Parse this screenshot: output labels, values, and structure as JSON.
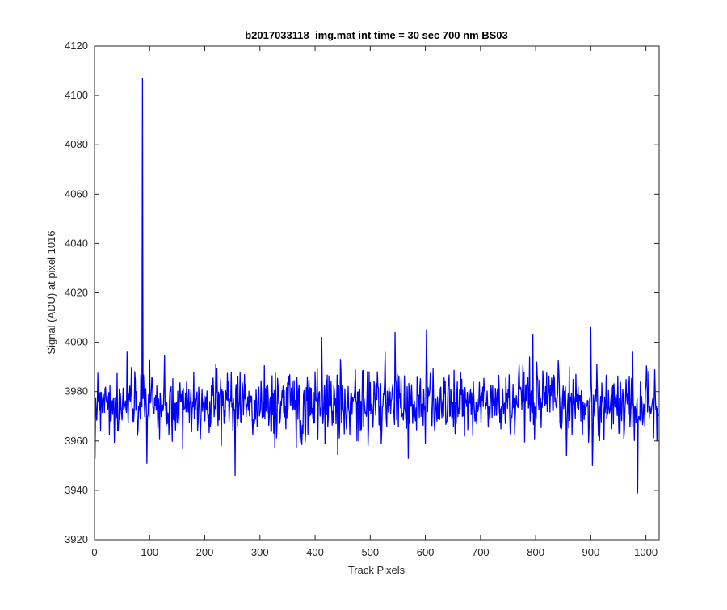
{
  "chart_data": {
    "type": "line",
    "title": "b2017033118_img.mat int time = 30 sec  700 nm BS03",
    "xlabel": "Track Pixels",
    "ylabel": "Signal (ADU) at pixel 1016",
    "xlim": [
      0,
      1024
    ],
    "ylim": [
      3920,
      4120
    ],
    "xticks": [
      0,
      100,
      200,
      300,
      400,
      500,
      600,
      700,
      800,
      900,
      1000
    ],
    "yticks": [
      3920,
      3940,
      3960,
      3980,
      4000,
      4020,
      4040,
      4060,
      4080,
      4100,
      4120
    ],
    "grid": false,
    "legend": "none",
    "box": true,
    "series": [
      {
        "color": "#0000ff",
        "baseline_mean": 3975,
        "noise_std": 7,
        "n_points": 1024,
        "notable_points": [
          {
            "x": 1,
            "y": 3953
          },
          {
            "x": 87,
            "y": 4107
          },
          {
            "x": 95,
            "y": 3951
          },
          {
            "x": 255,
            "y": 3946
          },
          {
            "x": 412,
            "y": 4002
          },
          {
            "x": 545,
            "y": 4004
          },
          {
            "x": 602,
            "y": 4005
          },
          {
            "x": 795,
            "y": 4003
          },
          {
            "x": 900,
            "y": 4006
          },
          {
            "x": 903,
            "y": 3950
          },
          {
            "x": 985,
            "y": 3939
          },
          {
            "x": 1020,
            "y": 3960
          }
        ]
      }
    ]
  }
}
